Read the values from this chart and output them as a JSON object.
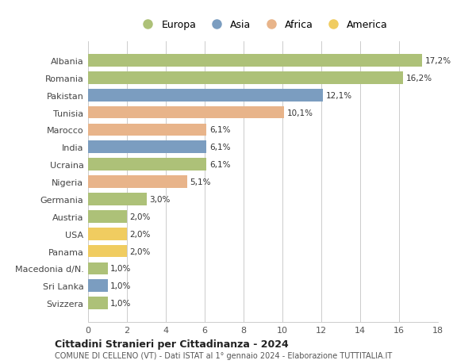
{
  "countries": [
    "Albania",
    "Romania",
    "Pakistan",
    "Tunisia",
    "Marocco",
    "India",
    "Ucraina",
    "Nigeria",
    "Germania",
    "Austria",
    "USA",
    "Panama",
    "Macedonia d/N.",
    "Sri Lanka",
    "Svizzera"
  ],
  "values": [
    17.2,
    16.2,
    12.1,
    10.1,
    6.1,
    6.1,
    6.1,
    5.1,
    3.0,
    2.0,
    2.0,
    2.0,
    1.0,
    1.0,
    1.0
  ],
  "labels": [
    "17,2%",
    "16,2%",
    "12,1%",
    "10,1%",
    "6,1%",
    "6,1%",
    "6,1%",
    "5,1%",
    "3,0%",
    "2,0%",
    "2,0%",
    "2,0%",
    "1,0%",
    "1,0%",
    "1,0%"
  ],
  "continent": [
    "Europa",
    "Europa",
    "Asia",
    "Africa",
    "Africa",
    "Asia",
    "Europa",
    "Africa",
    "Europa",
    "Europa",
    "America",
    "America",
    "Europa",
    "Asia",
    "Europa"
  ],
  "colors": {
    "Europa": "#adc178",
    "Asia": "#7b9dc0",
    "Africa": "#e8b48a",
    "America": "#f0cc60"
  },
  "legend_order": [
    "Europa",
    "Asia",
    "Africa",
    "America"
  ],
  "xlim": [
    0,
    18
  ],
  "xticks": [
    0,
    2,
    4,
    6,
    8,
    10,
    12,
    14,
    16,
    18
  ],
  "title": "Cittadini Stranieri per Cittadinanza - 2024",
  "subtitle": "COMUNE DI CELLENO (VT) - Dati ISTAT al 1° gennaio 2024 - Elaborazione TUTTITALIA.IT",
  "bg_color": "#ffffff",
  "grid_color": "#cccccc"
}
